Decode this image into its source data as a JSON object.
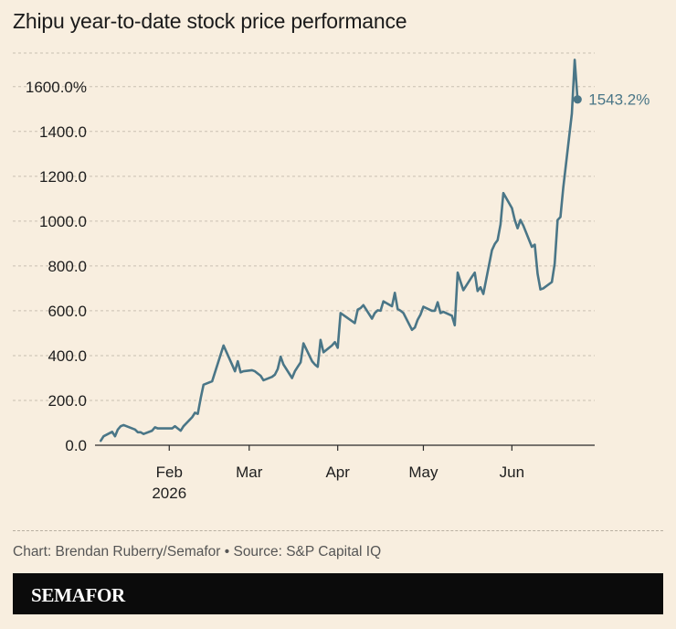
{
  "title": "Zhipu year-to-date stock price performance",
  "source": "Chart: Brendan Ruberry/Semafor • Source: S&P Capital IQ",
  "brand": "SEMAFOR",
  "colors": {
    "line": "#4a7687",
    "background": "#f8eedf",
    "grid": "#c9c0b2",
    "bar": "#0b0b0b"
  },
  "chart_data": {
    "type": "line",
    "title": "Zhipu year-to-date stock price performance",
    "xlabel": "",
    "ylabel": "",
    "ylim": [
      0,
      1750
    ],
    "y_ticks": [
      {
        "value": 0,
        "label": "0.0"
      },
      {
        "value": 200,
        "label": "200.0"
      },
      {
        "value": 400,
        "label": "400.0"
      },
      {
        "value": 600,
        "label": "600.0"
      },
      {
        "value": 800,
        "label": "800.0"
      },
      {
        "value": 1000,
        "label": "1000.0"
      },
      {
        "value": 1200,
        "label": "1200.0"
      },
      {
        "value": 1400,
        "label": "1400.0"
      },
      {
        "value": 1600,
        "label": "1600.0%"
      }
    ],
    "x_ticks": [
      {
        "date": "2026-02-01",
        "label": "Feb",
        "sublabel": "2026"
      },
      {
        "date": "2026-03-01",
        "label": "Mar"
      },
      {
        "date": "2026-04-01",
        "label": "Apr"
      },
      {
        "date": "2026-05-01",
        "label": "May"
      },
      {
        "date": "2026-06-01",
        "label": "Jun"
      }
    ],
    "xlim": [
      "2026-01-06",
      "2026-06-30"
    ],
    "grid": true,
    "end_label": "1543.2%",
    "series": [
      {
        "x": [
          "2026-01-08",
          "2026-01-09",
          "2026-01-12",
          "2026-01-13",
          "2026-01-14",
          "2026-01-15",
          "2026-01-16",
          "2026-01-19",
          "2026-01-20",
          "2026-01-21",
          "2026-01-22",
          "2026-01-23",
          "2026-01-26",
          "2026-01-27",
          "2026-01-28",
          "2026-01-29",
          "2026-01-30",
          "2026-02-02",
          "2026-02-03",
          "2026-02-04",
          "2026-02-05",
          "2026-02-06",
          "2026-02-09",
          "2026-02-10",
          "2026-02-11",
          "2026-02-12",
          "2026-02-13",
          "2026-02-16",
          "2026-02-20",
          "2026-02-23",
          "2026-02-24",
          "2026-02-25",
          "2026-02-26",
          "2026-02-27",
          "2026-03-02",
          "2026-03-03",
          "2026-03-04",
          "2026-03-05",
          "2026-03-06",
          "2026-03-09",
          "2026-03-10",
          "2026-03-11",
          "2026-03-12",
          "2026-03-13",
          "2026-03-16",
          "2026-03-17",
          "2026-03-18",
          "2026-03-19",
          "2026-03-20",
          "2026-03-23",
          "2026-03-24",
          "2026-03-25",
          "2026-03-26",
          "2026-03-27",
          "2026-03-30",
          "2026-03-31",
          "2026-04-01",
          "2026-04-02",
          "2026-04-07",
          "2026-04-08",
          "2026-04-09",
          "2026-04-10",
          "2026-04-13",
          "2026-04-14",
          "2026-04-15",
          "2026-04-16",
          "2026-04-17",
          "2026-04-20",
          "2026-04-21",
          "2026-04-22",
          "2026-04-23",
          "2026-04-24",
          "2026-04-27",
          "2026-04-28",
          "2026-04-29",
          "2026-04-30",
          "2026-05-01",
          "2026-05-04",
          "2026-05-05",
          "2026-05-06",
          "2026-05-07",
          "2026-05-08",
          "2026-05-11",
          "2026-05-12",
          "2026-05-13",
          "2026-05-14",
          "2026-05-15",
          "2026-05-18",
          "2026-05-19",
          "2026-05-20",
          "2026-05-21",
          "2026-05-22",
          "2026-05-25",
          "2026-05-26",
          "2026-05-27",
          "2026-05-28",
          "2026-05-29",
          "2026-06-01",
          "2026-06-02",
          "2026-06-03",
          "2026-06-04",
          "2026-06-05",
          "2026-06-08",
          "2026-06-09",
          "2026-06-10",
          "2026-06-11",
          "2026-06-12",
          "2026-06-15",
          "2026-06-16",
          "2026-06-17",
          "2026-06-18",
          "2026-06-19",
          "2026-06-22",
          "2026-06-23",
          "2026-06-24"
        ],
        "y": [
          20,
          40,
          60,
          40,
          70,
          85,
          90,
          75,
          70,
          58,
          58,
          50,
          65,
          80,
          75,
          75,
          75,
          75,
          85,
          75,
          65,
          85,
          125,
          145,
          140,
          210,
          270,
          285,
          445,
          360,
          330,
          375,
          325,
          330,
          335,
          330,
          320,
          310,
          290,
          305,
          315,
          340,
          395,
          360,
          300,
          330,
          350,
          370,
          455,
          375,
          360,
          350,
          470,
          415,
          445,
          460,
          435,
          590,
          545,
          605,
          612,
          625,
          565,
          590,
          602,
          600,
          642,
          620,
          680,
          608,
          600,
          590,
          515,
          525,
          560,
          583,
          618,
          600,
          600,
          638,
          590,
          595,
          578,
          535,
          770,
          730,
          692,
          752,
          770,
          688,
          705,
          675,
          870,
          898,
          915,
          985,
          1125,
          1058,
          1005,
          968,
          1005,
          980,
          885,
          895,
          765,
          695,
          700,
          728,
          810,
          1005,
          1018,
          1150,
          1480,
          1720,
          1543
        ]
      }
    ]
  }
}
